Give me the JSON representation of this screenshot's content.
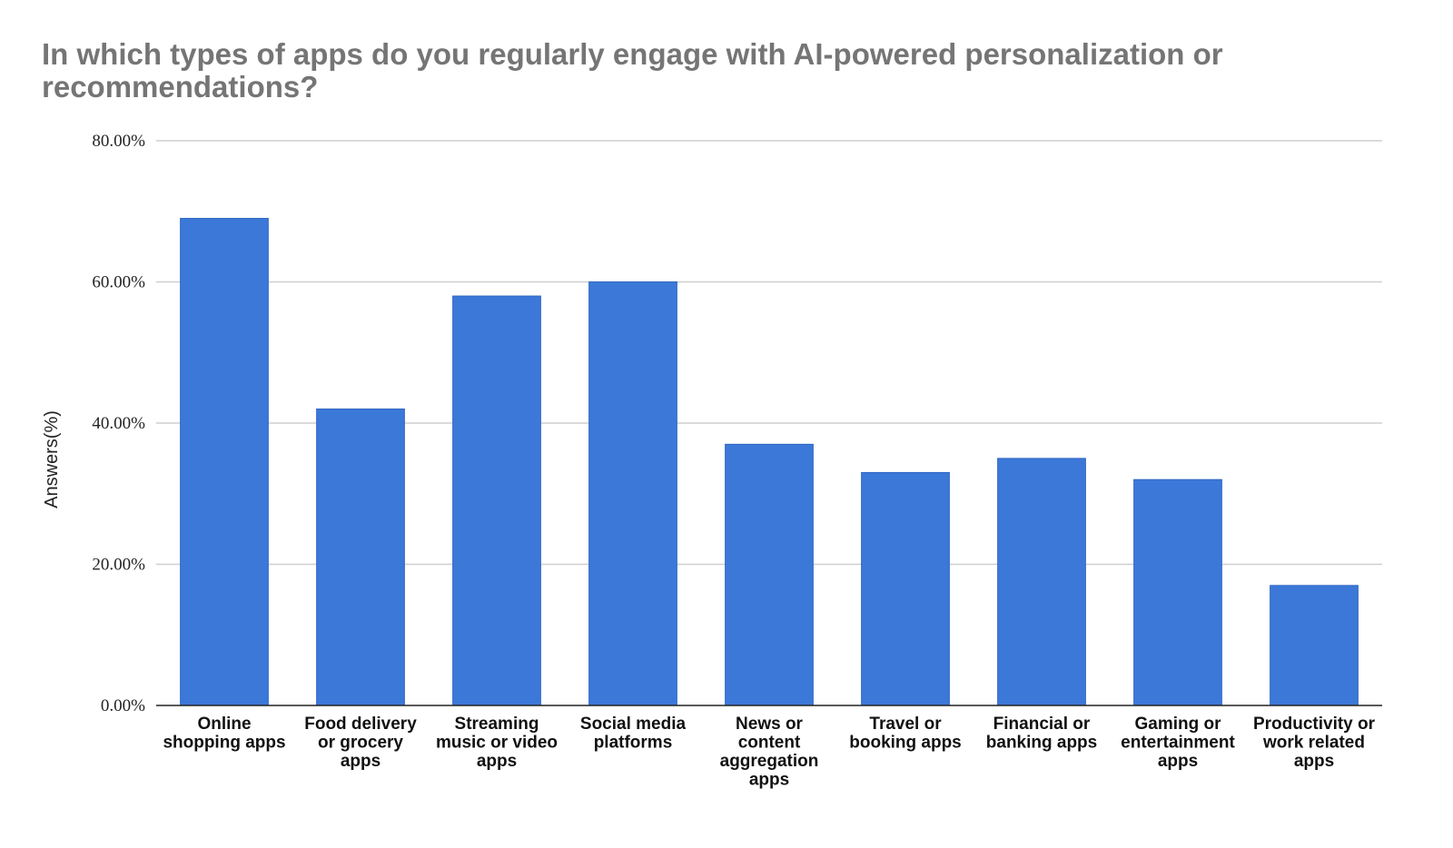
{
  "chart_data": {
    "type": "bar",
    "title": "In which types of apps do you regularly engage with AI-powered personalization or recommendations?",
    "xlabel": "",
    "ylabel": "Answers(%)",
    "ylim": [
      0,
      80
    ],
    "yticks": [
      0,
      20,
      40,
      60,
      80
    ],
    "ytick_labels": [
      "0.00%",
      "20.00%",
      "40.00%",
      "60.00%",
      "80.00%"
    ],
    "grid": true,
    "legend": "none",
    "bar_color": "#3c78d8",
    "categories": [
      [
        "Online",
        "shopping apps"
      ],
      [
        "Food delivery",
        "or grocery",
        "apps"
      ],
      [
        "Streaming",
        "music or video",
        "apps"
      ],
      [
        "Social media",
        "platforms"
      ],
      [
        "News or",
        "content",
        "aggregation",
        "apps"
      ],
      [
        "Travel or",
        "booking apps"
      ],
      [
        "Financial or",
        "banking apps"
      ],
      [
        "Gaming or",
        "entertainment",
        "apps"
      ],
      [
        "Productivity or",
        "work related",
        "apps"
      ]
    ],
    "values": [
      69,
      42,
      58,
      60,
      37,
      33,
      35,
      32,
      17
    ]
  }
}
